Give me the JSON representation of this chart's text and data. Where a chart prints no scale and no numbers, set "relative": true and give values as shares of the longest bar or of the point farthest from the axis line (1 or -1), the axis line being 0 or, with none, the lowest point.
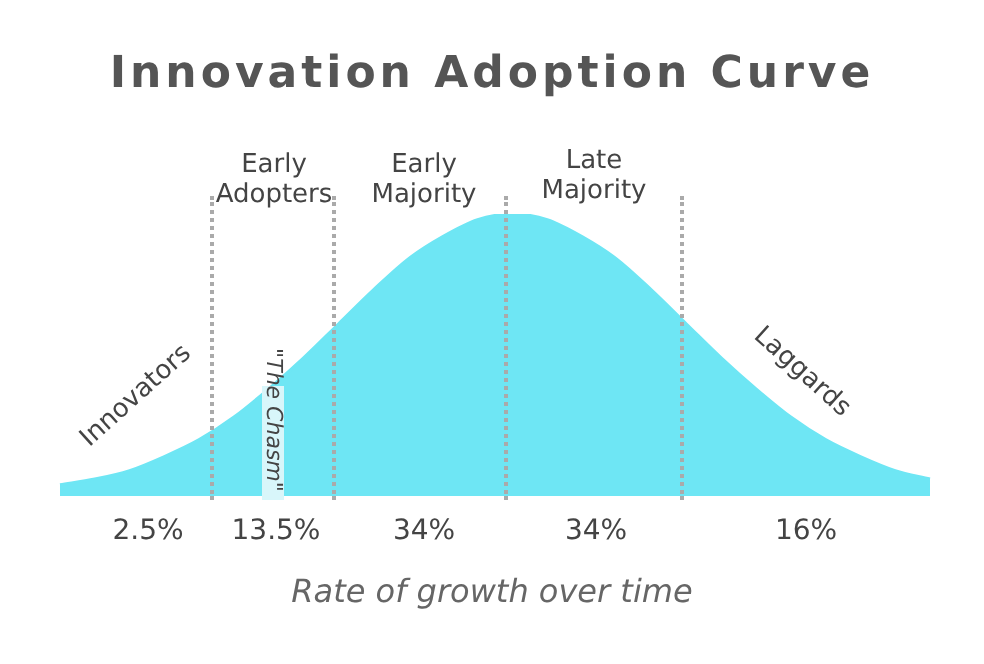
{
  "chart_data": {
    "type": "area",
    "title": "Innovation Adoption Curve",
    "xlabel": "Rate of growth over time",
    "relative": true,
    "categories": [
      null,
      null,
      null,
      null,
      null,
      null,
      null,
      null,
      null,
      null,
      null,
      null,
      null,
      null,
      null,
      null,
      null,
      null,
      null,
      null,
      null,
      null,
      null,
      null,
      null,
      null
    ],
    "values": [
      0.04,
      0.06,
      0.09,
      0.14,
      0.2,
      0.28,
      0.38,
      0.49,
      0.61,
      0.73,
      0.84,
      0.92,
      0.98,
      1,
      0.98,
      0.92,
      0.84,
      0.73,
      0.61,
      0.49,
      0.38,
      0.28,
      0.2,
      0.14,
      0.09,
      0.06
    ],
    "color": "#6ee6f4",
    "annotations": [
      "Innovators",
      "Early Adopters",
      "Early Majority",
      "Late Majority",
      "Laggards",
      "\"The Chasm\"",
      "2.5%",
      "13.5%",
      "34%",
      "34%",
      "16%"
    ]
  }
}
